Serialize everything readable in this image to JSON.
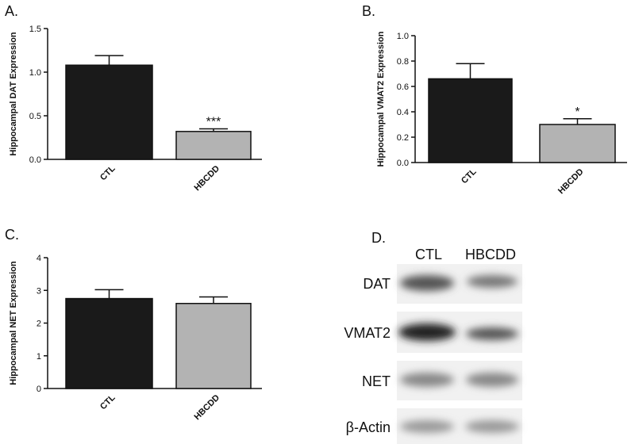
{
  "chart_data": [
    {
      "type": "bar",
      "panel_label": "A.",
      "ylabel": "Hippocampal DAT Expression",
      "categories": [
        "CTL",
        "HBCDD"
      ],
      "values": [
        1.08,
        0.32
      ],
      "errors": [
        0.11,
        0.03
      ],
      "significance": [
        null,
        "***"
      ],
      "colors": [
        "#1a1a1a",
        "#b3b3b3"
      ],
      "ylim": [
        0,
        1.5
      ],
      "yticks": [
        {
          "value": 0,
          "label": "0.0"
        },
        0.5,
        {
          "value": 1,
          "label": "1.0"
        },
        1.5
      ]
    },
    {
      "type": "bar",
      "panel_label": "B.",
      "ylabel": "Hippocampal VMAT2 Expression",
      "categories": [
        "CTL",
        "HBCDD"
      ],
      "values": [
        0.66,
        0.3
      ],
      "errors": [
        0.12,
        0.045
      ],
      "significance": [
        null,
        "*"
      ],
      "colors": [
        "#1a1a1a",
        "#b3b3b3"
      ],
      "ylim": [
        0,
        1
      ],
      "yticks": [
        {
          "value": 0,
          "label": "0.0"
        },
        0.2,
        0.4,
        0.6,
        0.8,
        {
          "value": 1,
          "label": "1.0"
        }
      ]
    },
    {
      "type": "bar",
      "panel_label": "C.",
      "ylabel": "Hippocampal NET Expression",
      "categories": [
        "CTL",
        "HBCDD"
      ],
      "values": [
        2.75,
        2.6
      ],
      "errors": [
        0.27,
        0.2
      ],
      "significance": [
        null,
        null
      ],
      "colors": [
        "#1a1a1a",
        "#b3b3b3"
      ],
      "ylim": [
        0,
        4
      ],
      "yticks": [
        0,
        1,
        2,
        3,
        4
      ]
    }
  ],
  "blot": {
    "panel_label": "D.",
    "columns": [
      "CTL",
      "HBCDD"
    ],
    "rows": [
      "DAT",
      "VMAT2",
      "NET",
      "β-Actin"
    ]
  }
}
